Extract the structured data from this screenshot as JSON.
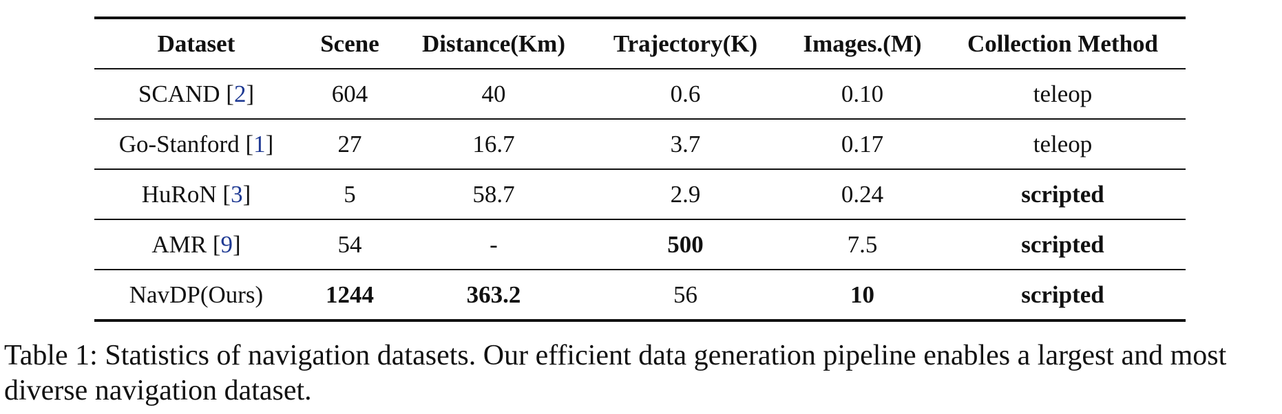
{
  "table": {
    "headers": [
      "Dataset",
      "Scene",
      "Distance(Km)",
      "Trajectory(K)",
      "Images.(M)",
      "Collection Method"
    ],
    "rows": [
      {
        "name": "SCAND",
        "ref": "2",
        "scene": "604",
        "distance": "40",
        "trajectory": "0.6",
        "images": "0.10",
        "method": "teleop",
        "bold": []
      },
      {
        "name": "Go-Stanford",
        "ref": "1",
        "scene": "27",
        "distance": "16.7",
        "trajectory": "3.7",
        "images": "0.17",
        "method": "teleop",
        "bold": []
      },
      {
        "name": "HuRoN",
        "ref": "3",
        "scene": "5",
        "distance": "58.7",
        "trajectory": "2.9",
        "images": "0.24",
        "method": "scripted",
        "bold": [
          "method"
        ]
      },
      {
        "name": "AMR",
        "ref": "9",
        "scene": "54",
        "distance": "-",
        "trajectory": "500",
        "images": "7.5",
        "method": "scripted",
        "bold": [
          "trajectory",
          "method"
        ]
      },
      {
        "name": "NavDP(Ours)",
        "ref": "",
        "scene": "1244",
        "distance": "363.2",
        "trajectory": "56",
        "images": "10",
        "method": "scripted",
        "bold": [
          "scene",
          "distance",
          "images",
          "method"
        ]
      }
    ]
  },
  "caption": "Table 1: Statistics of navigation datasets. Our efficient data generation pipeline enables a largest and most diverse navigation dataset."
}
